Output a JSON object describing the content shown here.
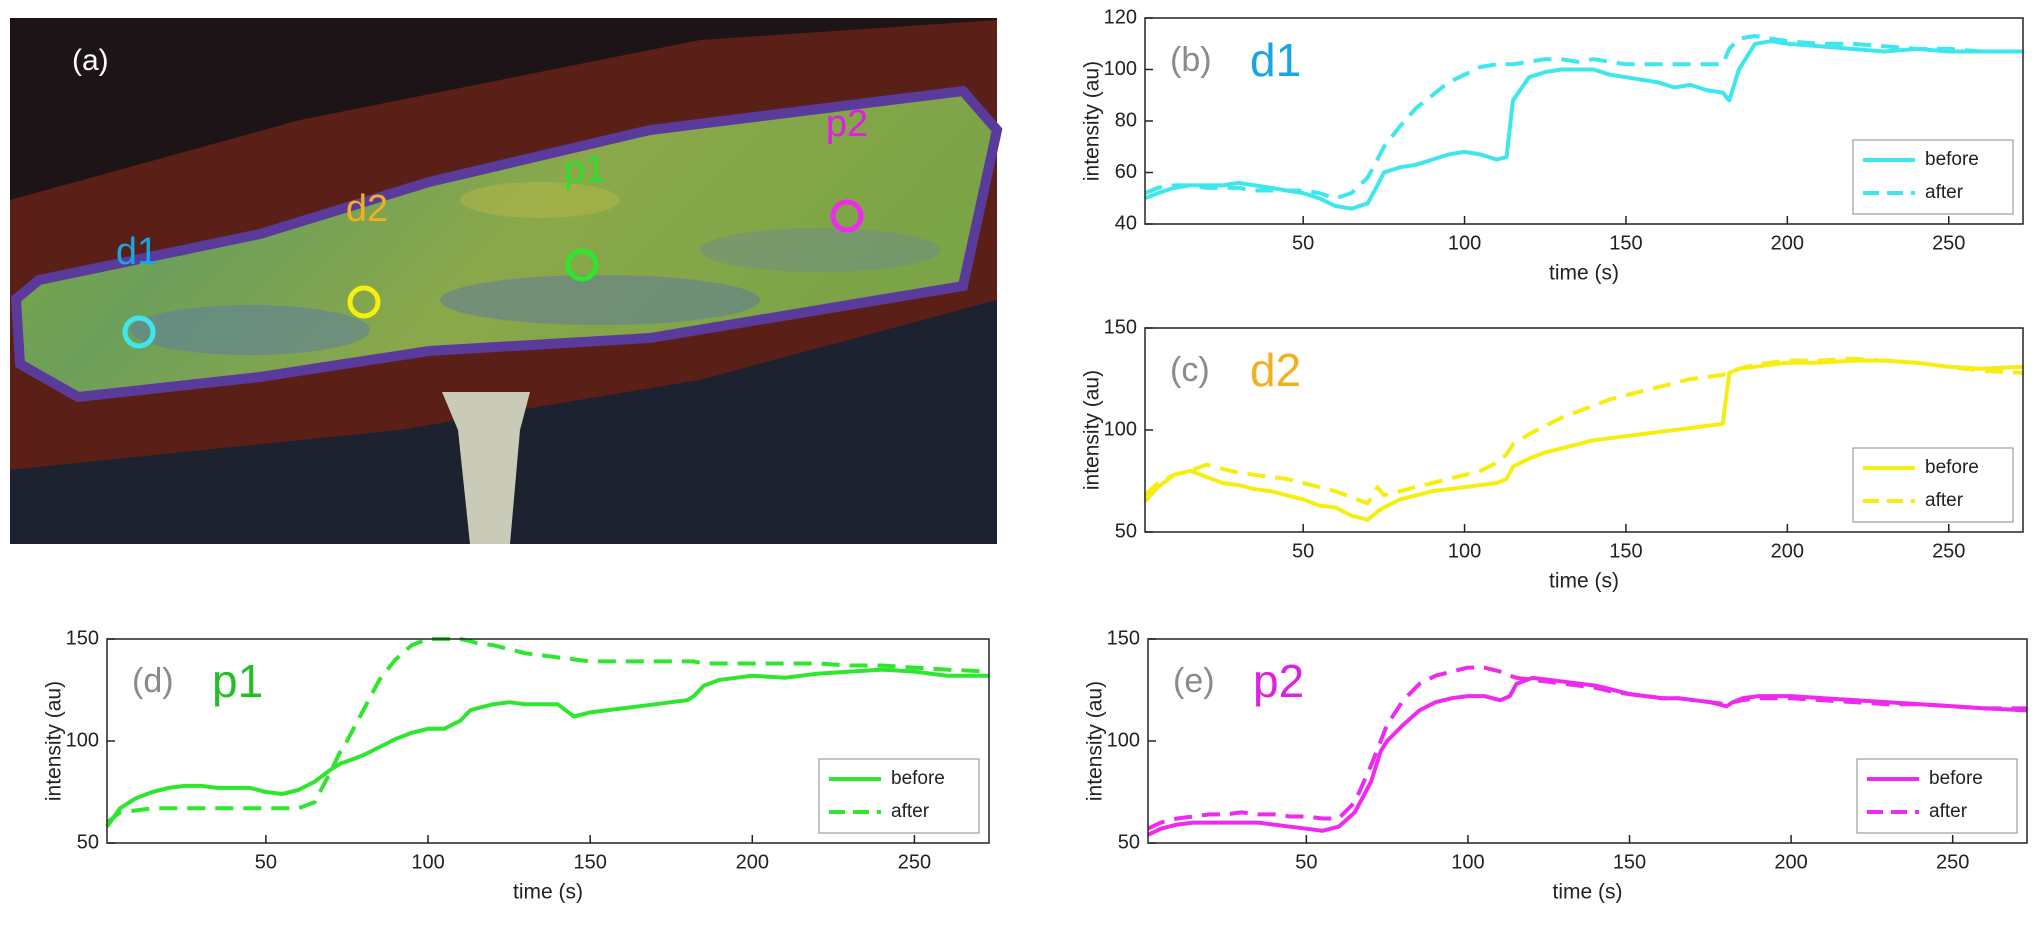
{
  "image_panel": {
    "label": "(a)",
    "markers": [
      {
        "label": "d1",
        "label_color": "#1aa6e0",
        "color": "#3ee6ee"
      },
      {
        "label": "d2",
        "label_color": "#f0b020",
        "color": "#f5ee10"
      },
      {
        "label": "p1",
        "label_color": "#2ee02e",
        "color": "#2fe62f"
      },
      {
        "label": "p2",
        "label_color": "#e020e0",
        "color": "#ee2aee"
      }
    ]
  },
  "chart_data": [
    {
      "type": "line",
      "panel_label": "(b)",
      "annotation": "d1",
      "annotation_color": "#1aa6e0",
      "x_label": "time (s)",
      "y_label": "intensity (au)",
      "legend": "lower right",
      "xlim": [
        1,
        273
      ],
      "xticks": [
        50,
        100,
        150,
        200,
        250
      ],
      "ylim": [
        40,
        120
      ],
      "yticks": [
        40,
        60,
        80,
        100,
        120
      ],
      "x": [
        1,
        5,
        10,
        15,
        20,
        25,
        30,
        35,
        40,
        45,
        50,
        55,
        60,
        65,
        70,
        73,
        75,
        80,
        85,
        90,
        95,
        100,
        105,
        110,
        113,
        115,
        120,
        125,
        130,
        135,
        140,
        145,
        150,
        155,
        160,
        165,
        170,
        175,
        180,
        182,
        185,
        190,
        195,
        200,
        210,
        220,
        230,
        240,
        250,
        260,
        273
      ],
      "series": [
        {
          "name": "before",
          "color": "#3ee6ee",
          "dash": false,
          "values": [
            50,
            52,
            54,
            55,
            55,
            55,
            56,
            55,
            54,
            53,
            52,
            50,
            47,
            46,
            48,
            55,
            60,
            62,
            63,
            65,
            67,
            68,
            67,
            65,
            66,
            88,
            97,
            99,
            100,
            100,
            100,
            98,
            97,
            96,
            95,
            93,
            94,
            92,
            91,
            88,
            100,
            110,
            111,
            110,
            109,
            108,
            107,
            108,
            107,
            107,
            107
          ]
        },
        {
          "name": "after",
          "color": "#3ee6ee",
          "dash": true,
          "values": [
            52,
            54,
            55,
            55,
            54,
            54,
            54,
            53,
            53,
            53,
            53,
            52,
            50,
            52,
            58,
            65,
            70,
            78,
            85,
            90,
            95,
            98,
            101,
            102,
            102,
            102,
            103,
            104,
            104,
            103,
            104,
            103,
            102,
            102,
            102,
            102,
            102,
            102,
            102,
            108,
            112,
            113,
            112,
            111,
            110,
            110,
            109,
            108,
            108,
            107,
            107
          ]
        }
      ]
    },
    {
      "type": "line",
      "panel_label": "(c)",
      "annotation": "d2",
      "annotation_color": "#f0b020",
      "x_label": "time (s)",
      "y_label": "intensity (au)",
      "legend": "lower right",
      "xlim": [
        1,
        273
      ],
      "xticks": [
        50,
        100,
        150,
        200,
        250
      ],
      "ylim": [
        50,
        150
      ],
      "yticks": [
        50,
        100,
        150
      ],
      "x": [
        1,
        5,
        10,
        15,
        20,
        25,
        30,
        35,
        40,
        45,
        50,
        55,
        60,
        65,
        70,
        73,
        75,
        80,
        85,
        90,
        95,
        100,
        105,
        110,
        113,
        115,
        120,
        125,
        130,
        135,
        140,
        145,
        150,
        155,
        160,
        165,
        170,
        175,
        180,
        182,
        185,
        190,
        195,
        200,
        210,
        220,
        230,
        240,
        250,
        260,
        273
      ],
      "series": [
        {
          "name": "before",
          "color": "#f5ee10",
          "dash": false,
          "values": [
            65,
            72,
            78,
            80,
            77,
            74,
            73,
            71,
            70,
            68,
            66,
            63,
            62,
            58,
            56,
            60,
            62,
            66,
            68,
            70,
            71,
            72,
            73,
            74,
            76,
            82,
            86,
            89,
            91,
            93,
            95,
            96,
            97,
            98,
            99,
            100,
            101,
            102,
            103,
            128,
            130,
            131,
            132,
            133,
            133,
            134,
            134,
            133,
            131,
            130,
            131
          ]
        },
        {
          "name": "after",
          "color": "#f5ee10",
          "dash": true,
          "values": [
            68,
            74,
            78,
            80,
            83,
            81,
            79,
            78,
            77,
            76,
            74,
            72,
            70,
            67,
            64,
            72,
            68,
            70,
            72,
            74,
            76,
            78,
            80,
            84,
            88,
            93,
            98,
            102,
            106,
            109,
            112,
            115,
            117,
            119,
            121,
            123,
            125,
            126,
            127,
            128,
            130,
            132,
            133,
            134,
            134,
            135,
            134,
            133,
            131,
            129,
            128
          ]
        }
      ]
    },
    {
      "type": "line",
      "panel_label": "(d)",
      "annotation": "p1",
      "annotation_color": "#22c022",
      "x_label": "time (s)",
      "y_label": "intensity (au)",
      "legend": "lower right",
      "xlim": [
        1,
        273
      ],
      "xticks": [
        50,
        100,
        150,
        200,
        250
      ],
      "ylim": [
        50,
        150
      ],
      "yticks": [
        50,
        100,
        150
      ],
      "x": [
        1,
        5,
        10,
        15,
        20,
        25,
        30,
        35,
        40,
        45,
        50,
        55,
        60,
        65,
        70,
        73,
        75,
        80,
        85,
        90,
        95,
        100,
        105,
        110,
        113,
        115,
        120,
        125,
        130,
        135,
        140,
        145,
        150,
        155,
        160,
        165,
        170,
        175,
        180,
        182,
        185,
        190,
        195,
        200,
        210,
        220,
        230,
        240,
        250,
        260,
        273
      ],
      "series": [
        {
          "name": "before",
          "color": "#2fe62f",
          "dash": false,
          "values": [
            58,
            67,
            72,
            75,
            77,
            78,
            78,
            77,
            77,
            77,
            75,
            74,
            76,
            80,
            86,
            89,
            90,
            93,
            97,
            101,
            104,
            106,
            106,
            110,
            115,
            116,
            118,
            119,
            118,
            118,
            118,
            112,
            114,
            115,
            116,
            117,
            118,
            119,
            120,
            122,
            127,
            130,
            131,
            132,
            131,
            133,
            134,
            135,
            134,
            132,
            132
          ]
        },
        {
          "name": "after",
          "color": "#2fe62f",
          "dash": true,
          "values": [
            60,
            65,
            66,
            67,
            67,
            67,
            67,
            67,
            67,
            67,
            67,
            67,
            67,
            70,
            85,
            95,
            100,
            115,
            130,
            140,
            147,
            150,
            150,
            150,
            149,
            148,
            147,
            145,
            143,
            142,
            141,
            140,
            139,
            139,
            139,
            139,
            139,
            139,
            139,
            139,
            138,
            138,
            138,
            138,
            138,
            138,
            137,
            137,
            136,
            135,
            134
          ]
        }
      ]
    },
    {
      "type": "line",
      "panel_label": "(e)",
      "annotation": "p2",
      "annotation_color": "#e020e0",
      "x_label": "time (s)",
      "y_label": "intensity (au)",
      "legend": "lower right",
      "xlim": [
        1,
        273
      ],
      "xticks": [
        50,
        100,
        150,
        200,
        250
      ],
      "ylim": [
        50,
        150
      ],
      "yticks": [
        50,
        100,
        150
      ],
      "x": [
        1,
        5,
        10,
        15,
        20,
        25,
        30,
        35,
        40,
        45,
        50,
        55,
        60,
        65,
        70,
        73,
        75,
        80,
        85,
        90,
        95,
        100,
        105,
        110,
        113,
        115,
        120,
        125,
        130,
        135,
        140,
        145,
        150,
        155,
        160,
        165,
        170,
        175,
        180,
        182,
        185,
        190,
        195,
        200,
        210,
        220,
        230,
        240,
        250,
        260,
        273
      ],
      "series": [
        {
          "name": "before",
          "color": "#ee2aee",
          "dash": false,
          "values": [
            54,
            57,
            59,
            60,
            60,
            60,
            60,
            60,
            59,
            58,
            57,
            56,
            58,
            65,
            80,
            95,
            100,
            108,
            115,
            119,
            121,
            122,
            122,
            120,
            122,
            128,
            131,
            130,
            129,
            128,
            127,
            125,
            123,
            122,
            121,
            121,
            120,
            119,
            117,
            119,
            121,
            122,
            122,
            122,
            121,
            120,
            119,
            118,
            117,
            116,
            115
          ]
        },
        {
          "name": "after",
          "color": "#ee2aee",
          "dash": true,
          "values": [
            57,
            60,
            62,
            63,
            64,
            64,
            65,
            64,
            64,
            63,
            63,
            62,
            62,
            70,
            88,
            100,
            108,
            120,
            128,
            132,
            134,
            136,
            136,
            134,
            132,
            131,
            130,
            129,
            128,
            127,
            126,
            124,
            123,
            122,
            121,
            121,
            120,
            119,
            118,
            119,
            120,
            121,
            121,
            121,
            120,
            119,
            118,
            118,
            117,
            116,
            116
          ]
        }
      ]
    }
  ]
}
